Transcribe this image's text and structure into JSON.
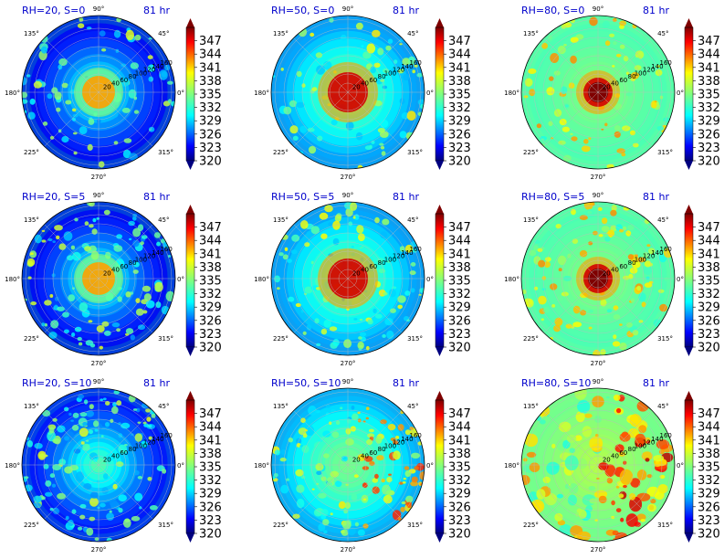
{
  "chart_data": {
    "type": "heatmap",
    "projection": "polar",
    "time_label": "81 hr",
    "angle_labels": [
      "90°",
      "45°",
      "0°",
      "315°",
      "270°",
      "225°",
      "180°",
      "135°"
    ],
    "radial_ticks": [
      "20",
      "40",
      "60",
      "80",
      "100",
      "120",
      "140",
      "160"
    ],
    "colorbar": {
      "colormap": "jet",
      "range": [
        320,
        350
      ],
      "ticks": [
        "347",
        "344",
        "341",
        "338",
        "335",
        "332",
        "329",
        "326",
        "323",
        "320"
      ]
    },
    "panels": [
      {
        "title": "RH=20, S=0",
        "rh": 20,
        "s": 0
      },
      {
        "title": "RH=50, S=0",
        "rh": 50,
        "s": 0
      },
      {
        "title": "RH=80, S=0",
        "rh": 80,
        "s": 0
      },
      {
        "title": "RH=20, S=5",
        "rh": 20,
        "s": 5
      },
      {
        "title": "RH=50, S=5",
        "rh": 50,
        "s": 5
      },
      {
        "title": "RH=80, S=5",
        "rh": 80,
        "s": 5
      },
      {
        "title": "RH=20, S=10",
        "rh": 20,
        "s": 10
      },
      {
        "title": "RH=50, S=10",
        "rh": 50,
        "s": 10
      },
      {
        "title": "RH=80, S=10",
        "rh": 80,
        "s": 10
      }
    ]
  }
}
